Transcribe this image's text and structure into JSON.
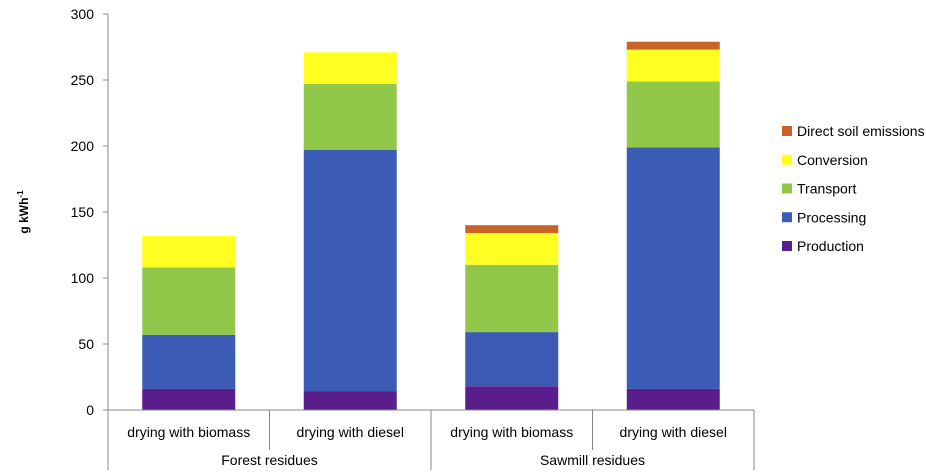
{
  "chart_data": {
    "type": "bar",
    "stacked": true,
    "ylabel": "g kWh",
    "ylabel_superscript": "-1",
    "ylim": [
      0,
      300
    ],
    "yticks": [
      0,
      50,
      100,
      150,
      200,
      250,
      300
    ],
    "grid": false,
    "legend_position": "right",
    "groups": [
      {
        "label": "Forest residues",
        "categories": [
          "drying with biomass",
          "drying with diesel"
        ]
      },
      {
        "label": "Sawmill residues",
        "categories": [
          "drying with biomass",
          "drying with diesel"
        ]
      }
    ],
    "series": [
      {
        "name": "Production",
        "color": "#5a1e8c",
        "values": [
          16,
          14,
          18,
          16
        ]
      },
      {
        "name": "Processing",
        "color": "#3b5bb5",
        "values": [
          41,
          183,
          41,
          183
        ]
      },
      {
        "name": "Transport",
        "color": "#92c84a",
        "values": [
          51,
          50,
          51,
          50
        ]
      },
      {
        "name": "Conversion",
        "color": "#ffff22",
        "values": [
          24,
          24,
          24,
          24
        ]
      },
      {
        "name": "Direct soil emissions",
        "color": "#c8642a",
        "values": [
          0,
          0,
          6,
          6
        ]
      }
    ],
    "legend_order": [
      "Direct soil emissions",
      "Conversion",
      "Transport",
      "Processing",
      "Production"
    ]
  }
}
